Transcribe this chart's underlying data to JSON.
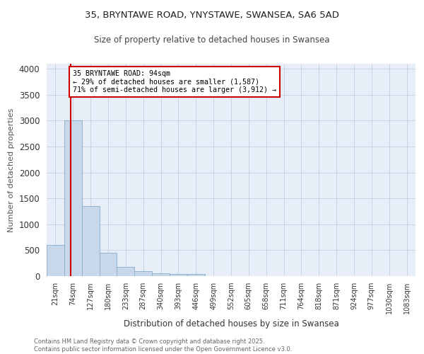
{
  "title1": "35, BRYNTAWE ROAD, YNYSTAWE, SWANSEA, SA6 5AD",
  "title2": "Size of property relative to detached houses in Swansea",
  "xlabel": "Distribution of detached houses by size in Swansea",
  "ylabel": "Number of detached properties",
  "bin_labels": [
    "21sqm",
    "74sqm",
    "127sqm",
    "180sqm",
    "233sqm",
    "287sqm",
    "340sqm",
    "393sqm",
    "446sqm",
    "499sqm",
    "552sqm",
    "605sqm",
    "658sqm",
    "711sqm",
    "764sqm",
    "818sqm",
    "871sqm",
    "924sqm",
    "977sqm",
    "1030sqm",
    "1083sqm"
  ],
  "bar_heights": [
    600,
    3000,
    1350,
    450,
    175,
    90,
    55,
    40,
    40,
    0,
    0,
    0,
    0,
    0,
    0,
    0,
    0,
    0,
    0,
    0,
    0
  ],
  "bar_color": "#c8d8ea",
  "bar_edgecolor": "#85aecb",
  "annotation_line1": "35 BRYNTAWE ROAD: 94sqm",
  "annotation_line2": "← 29% of detached houses are smaller (1,587)",
  "annotation_line3": "71% of semi-detached houses are larger (3,912) →",
  "vline_color": "#cc0000",
  "vline_x": 1.27,
  "ylim": [
    0,
    4100
  ],
  "yticks": [
    0,
    500,
    1000,
    1500,
    2000,
    2500,
    3000,
    3500,
    4000
  ],
  "grid_color": "#c8d4e4",
  "background_color": "#e8eef8",
  "annotation_box_color": "#ffffff",
  "annotation_border_color": "#cc0000",
  "footer_line1": "Contains HM Land Registry data © Crown copyright and database right 2025.",
  "footer_line2": "Contains public sector information licensed under the Open Government Licence v3.0."
}
